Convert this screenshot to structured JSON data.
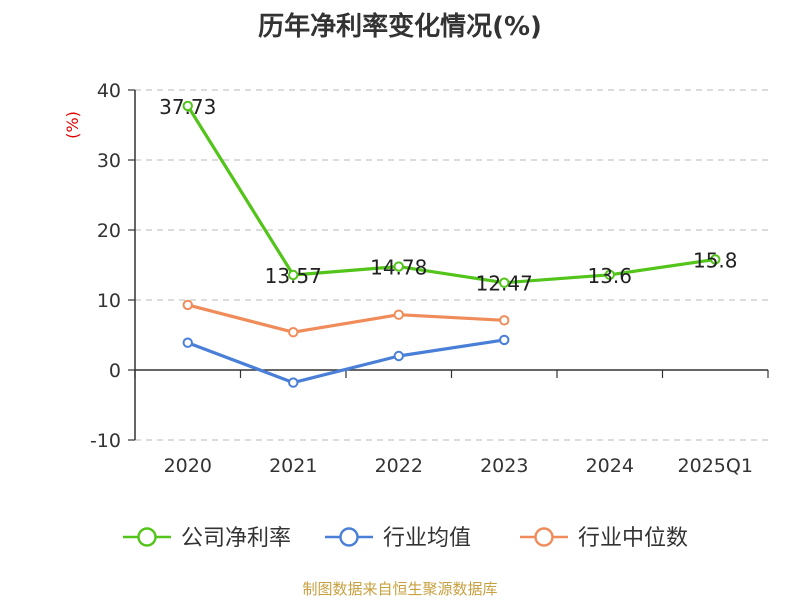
{
  "chart_data": {
    "type": "line",
    "title": "历年净利率变化情况(%)",
    "ylabel": "(%)",
    "xlabel": "",
    "categories": [
      "2020",
      "2021",
      "2022",
      "2023",
      "2024",
      "2025Q1"
    ],
    "ylim": [
      -10,
      40
    ],
    "yticks": [
      -10,
      0,
      10,
      20,
      30,
      40
    ],
    "ytick_labels": [
      "-10",
      "0",
      "10",
      "20",
      "30",
      "40"
    ],
    "grid": true,
    "legend_position": "bottom",
    "series": [
      {
        "name": "公司净利率",
        "color": "#52c41a",
        "values": [
          37.73,
          13.57,
          14.78,
          12.47,
          13.6,
          15.8
        ],
        "labels": [
          "37.73",
          "13.57",
          "14.78",
          "12.47",
          "13.6",
          "15.8"
        ],
        "show_labels": true
      },
      {
        "name": "行业均值",
        "color": "#4a7fd8",
        "values": [
          3.9,
          -1.8,
          2.0,
          4.3,
          null,
          null
        ],
        "show_labels": false
      },
      {
        "name": "行业中位数",
        "color": "#f08c5a",
        "values": [
          9.3,
          5.4,
          7.9,
          7.1,
          null,
          null
        ],
        "show_labels": false
      }
    ]
  },
  "footer": {
    "source": "制图数据来自恒生聚源数据库"
  }
}
